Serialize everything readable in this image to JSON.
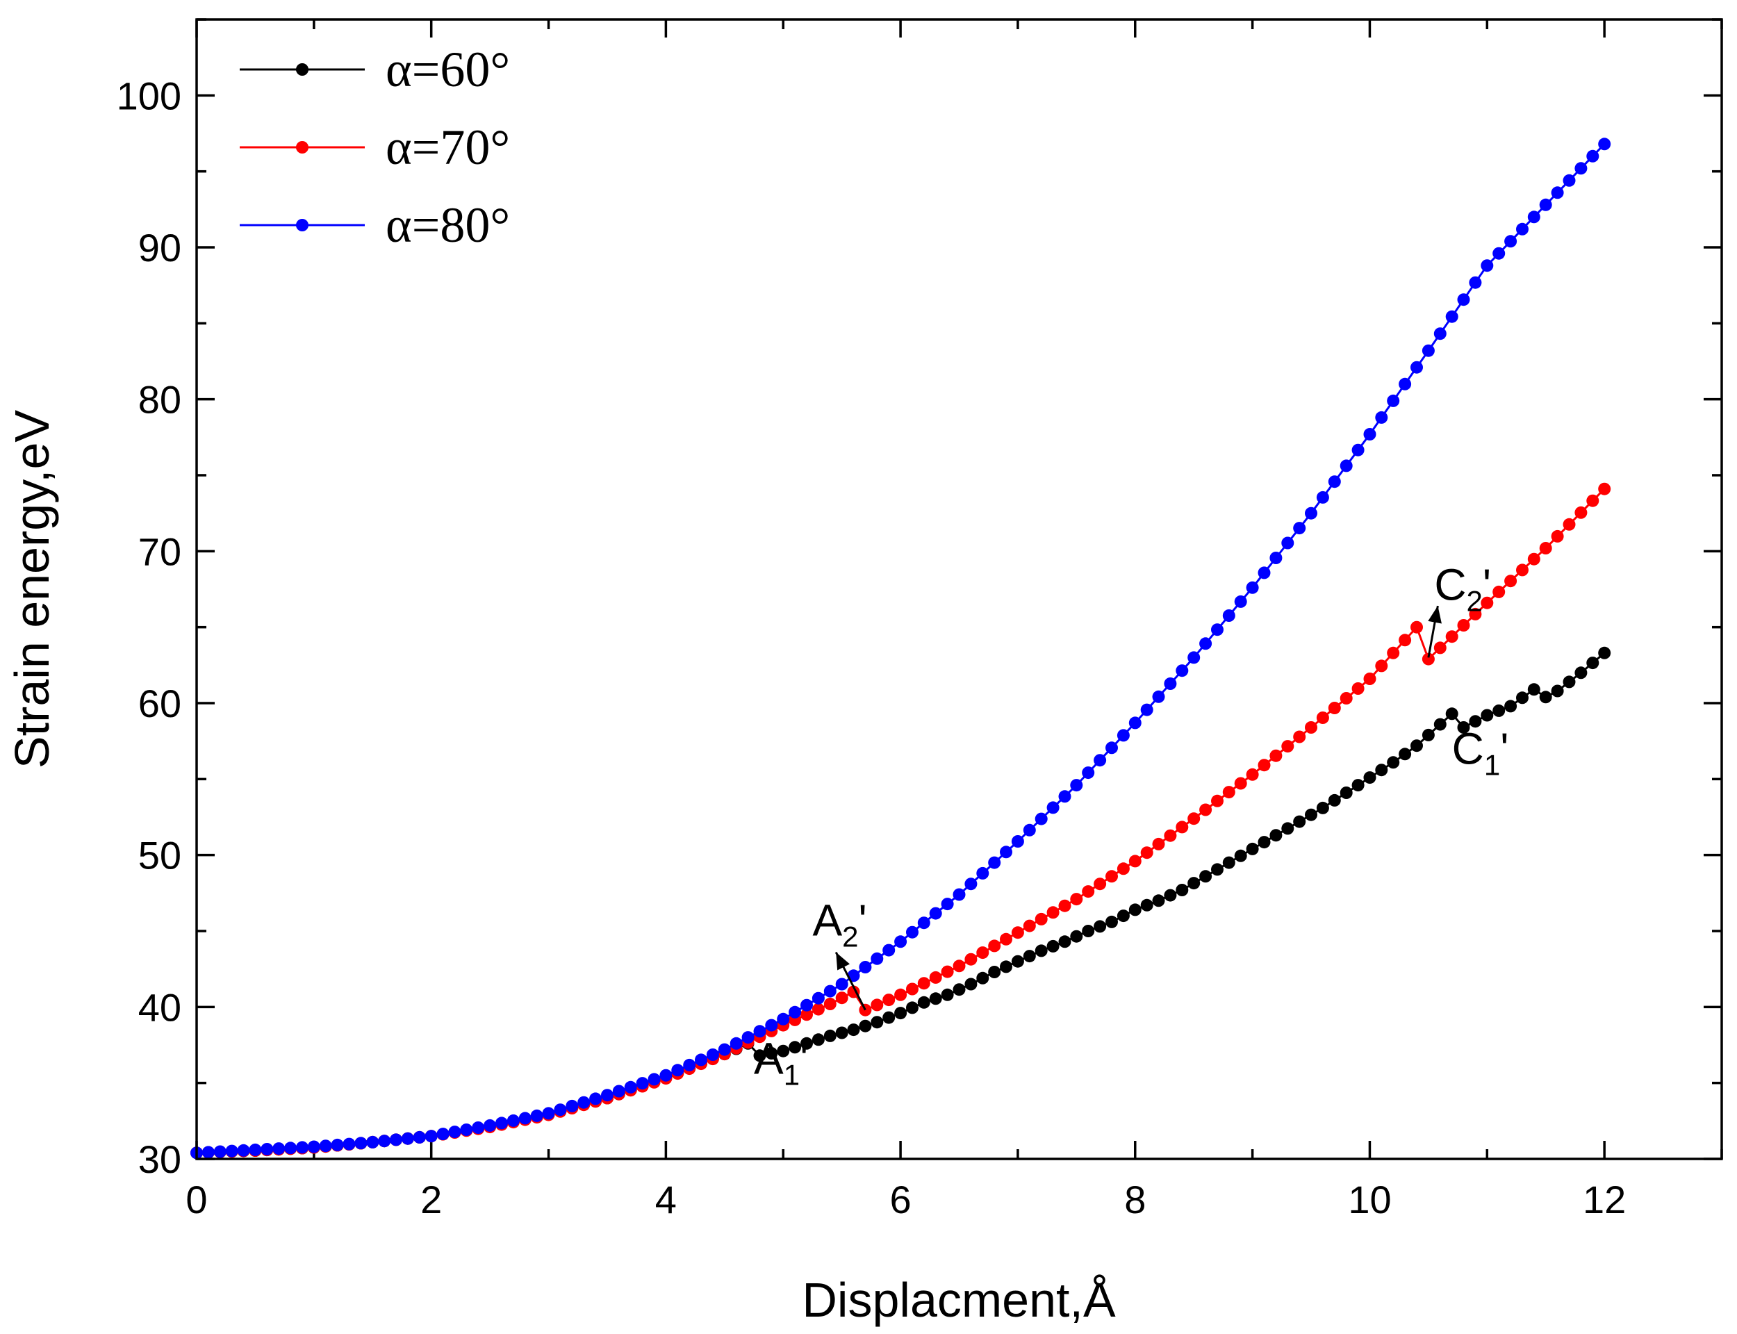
{
  "chart_data": {
    "type": "line",
    "title": "",
    "xlabel": "Displacment,Å",
    "ylabel": "Strain energy,eV",
    "xlim": [
      0,
      13
    ],
    "ylim": [
      30,
      105
    ],
    "xticks": [
      0,
      2,
      4,
      6,
      8,
      10,
      12
    ],
    "yticks": [
      30,
      40,
      50,
      60,
      70,
      80,
      90,
      100
    ],
    "x_minor_step": 1,
    "y_minor_step": 5,
    "legend_position": "top-left",
    "series": [
      {
        "name": "α=60°",
        "color": "#000000",
        "points": [
          [
            0,
            30.4
          ],
          [
            0.5,
            30.55
          ],
          [
            1,
            30.75
          ],
          [
            1.5,
            31.1
          ],
          [
            2,
            31.5
          ],
          [
            2.5,
            32.15
          ],
          [
            3,
            32.95
          ],
          [
            3.5,
            34
          ],
          [
            4,
            35.35
          ],
          [
            4.5,
            36.9
          ],
          [
            4.7,
            37.6
          ],
          [
            4.8,
            36.8
          ],
          [
            5.0,
            37.1
          ],
          [
            5.2,
            37.6
          ],
          [
            5.4,
            38.1
          ],
          [
            5.6,
            38.5
          ],
          [
            5.8,
            39.0
          ],
          [
            6.0,
            39.6
          ],
          [
            6.2,
            40.3
          ],
          [
            6.4,
            40.8
          ],
          [
            6.6,
            41.5
          ],
          [
            6.8,
            42.3
          ],
          [
            7.0,
            43.0
          ],
          [
            7.2,
            43.7
          ],
          [
            7.4,
            44.3
          ],
          [
            7.6,
            45.0
          ],
          [
            7.8,
            45.6
          ],
          [
            8.0,
            46.4
          ],
          [
            8.2,
            47.0
          ],
          [
            8.4,
            47.7
          ],
          [
            8.6,
            48.6
          ],
          [
            8.8,
            49.5
          ],
          [
            9.0,
            50.4
          ],
          [
            9.2,
            51.3
          ],
          [
            9.4,
            52.2
          ],
          [
            9.6,
            53.1
          ],
          [
            9.8,
            54.1
          ],
          [
            10.0,
            55.1
          ],
          [
            10.2,
            56.1
          ],
          [
            10.4,
            57.2
          ],
          [
            10.6,
            58.6
          ],
          [
            10.7,
            59.3
          ],
          [
            10.8,
            58.4
          ],
          [
            11.0,
            59.2
          ],
          [
            11.2,
            59.8
          ],
          [
            11.4,
            60.9
          ],
          [
            11.5,
            60.4
          ],
          [
            11.6,
            60.8
          ],
          [
            11.8,
            62.0
          ],
          [
            12.0,
            63.3
          ]
        ]
      },
      {
        "name": "α=70°",
        "color": "#ff0000",
        "points": [
          [
            0,
            30.4
          ],
          [
            0.5,
            30.55
          ],
          [
            1,
            30.75
          ],
          [
            1.5,
            31.1
          ],
          [
            2,
            31.5
          ],
          [
            2.5,
            32.1
          ],
          [
            3,
            32.9
          ],
          [
            3.5,
            34
          ],
          [
            4,
            35.3
          ],
          [
            4.5,
            36.9
          ],
          [
            5,
            38.8
          ],
          [
            5.4,
            40.2
          ],
          [
            5.6,
            41.0
          ],
          [
            5.7,
            39.8
          ],
          [
            6,
            40.8
          ],
          [
            6.5,
            42.7
          ],
          [
            7,
            44.9
          ],
          [
            7.5,
            47.1
          ],
          [
            8,
            49.6
          ],
          [
            8.5,
            52.4
          ],
          [
            9,
            55.3
          ],
          [
            9.5,
            58.4
          ],
          [
            10,
            61.6
          ],
          [
            10.4,
            65.0
          ],
          [
            10.5,
            62.9
          ],
          [
            11,
            66.6
          ],
          [
            11.5,
            70.2
          ],
          [
            12,
            74.1
          ]
        ]
      },
      {
        "name": "α=80°",
        "color": "#0000ff",
        "points": [
          [
            0,
            30.4
          ],
          [
            0.5,
            30.6
          ],
          [
            1,
            30.8
          ],
          [
            1.5,
            31.1
          ],
          [
            2,
            31.5
          ],
          [
            2.5,
            32.2
          ],
          [
            3,
            33.0
          ],
          [
            3.5,
            34.2
          ],
          [
            4,
            35.5
          ],
          [
            4.5,
            37.2
          ],
          [
            5,
            39.2
          ],
          [
            5.5,
            41.5
          ],
          [
            6,
            44.3
          ],
          [
            6.5,
            47.4
          ],
          [
            7,
            50.9
          ],
          [
            7.5,
            54.6
          ],
          [
            8,
            58.7
          ],
          [
            8.5,
            63.0
          ],
          [
            9,
            67.6
          ],
          [
            9.5,
            72.5
          ],
          [
            10,
            77.7
          ],
          [
            10.5,
            83.2
          ],
          [
            11,
            88.8
          ],
          [
            11.5,
            92.8
          ],
          [
            12,
            96.8
          ]
        ]
      }
    ],
    "annotations": [
      {
        "main": "A",
        "sub": "1",
        "suffix": "'",
        "x": 4.75,
        "y": 35.6
      },
      {
        "main": "A",
        "sub": "2",
        "suffix": "'",
        "x": 5.25,
        "y": 44.7
      },
      {
        "main": "C",
        "sub": "1",
        "suffix": "'",
        "x": 10.7,
        "y": 56.0
      },
      {
        "main": "C",
        "sub": "2",
        "suffix": "'",
        "x": 10.55,
        "y": 66.8
      }
    ]
  }
}
